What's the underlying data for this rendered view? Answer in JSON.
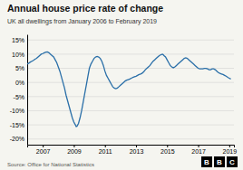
{
  "chart_data": {
    "type": "line",
    "title": "Annual house price rate of change",
    "subtitle": "UK all dwellings from January 2006 to February 2019",
    "source": "Source: Office for National Statistics",
    "logo": [
      "B",
      "B",
      "C"
    ],
    "x": [
      2006.0,
      2006.1,
      2006.2,
      2006.3,
      2006.4,
      2006.5,
      2006.6,
      2006.7,
      2006.8,
      2006.9,
      2007.0,
      2007.1,
      2007.2,
      2007.3,
      2007.4,
      2007.5,
      2007.6,
      2007.7,
      2007.8,
      2007.9,
      2008.0,
      2008.1,
      2008.2,
      2008.3,
      2008.4,
      2008.5,
      2008.6,
      2008.7,
      2008.8,
      2008.9,
      2009.0,
      2009.1,
      2009.15,
      2009.2,
      2009.3,
      2009.4,
      2009.5,
      2009.6,
      2009.7,
      2009.8,
      2009.9,
      2010.0,
      2010.1,
      2010.2,
      2010.3,
      2010.4,
      2010.5,
      2010.6,
      2010.7,
      2010.8,
      2010.9,
      2011.0,
      2011.1,
      2011.2,
      2011.3,
      2011.4,
      2011.5,
      2011.6,
      2011.7,
      2011.8,
      2011.9,
      2012.0,
      2012.1,
      2012.2,
      2012.3,
      2012.4,
      2012.5,
      2012.6,
      2012.7,
      2012.8,
      2012.9,
      2013.0,
      2013.1,
      2013.2,
      2013.3,
      2013.4,
      2013.5,
      2013.6,
      2013.7,
      2013.8,
      2013.9,
      2014.0,
      2014.1,
      2014.2,
      2014.3,
      2014.4,
      2014.5,
      2014.6,
      2014.7,
      2014.75,
      2014.8,
      2014.9,
      2015.0,
      2015.1,
      2015.2,
      2015.3,
      2015.4,
      2015.5,
      2015.6,
      2015.7,
      2015.8,
      2015.9,
      2016.0,
      2016.1,
      2016.2,
      2016.3,
      2016.4,
      2016.5,
      2016.6,
      2016.7,
      2016.8,
      2016.9,
      2017.0,
      2017.1,
      2017.2,
      2017.3,
      2017.4,
      2017.5,
      2017.6,
      2017.7,
      2017.8,
      2017.9,
      2018.0,
      2018.1,
      2018.2,
      2018.3,
      2018.4,
      2018.5,
      2018.6,
      2018.7,
      2018.8,
      2018.9,
      2019.0,
      2019.1
    ],
    "series": [
      {
        "color": "#2a6fa8",
        "values": [
          6.5,
          6.8,
          7.2,
          7.5,
          7.8,
          8.2,
          8.5,
          9.0,
          9.5,
          10.0,
          10.2,
          10.5,
          10.7,
          10.8,
          10.5,
          10.0,
          9.5,
          9.0,
          8.0,
          7.0,
          5.5,
          4.0,
          2.0,
          0.0,
          -2.0,
          -4.5,
          -6.5,
          -8.5,
          -10.5,
          -12.5,
          -14.0,
          -15.0,
          -15.6,
          -15.5,
          -14.5,
          -12.5,
          -10.0,
          -7.0,
          -4.0,
          -1.0,
          2.0,
          5.0,
          6.5,
          7.5,
          8.5,
          9.0,
          9.2,
          9.0,
          8.5,
          7.5,
          6.0,
          4.0,
          2.5,
          1.5,
          0.5,
          -0.5,
          -1.5,
          -2.0,
          -2.2,
          -2.0,
          -1.5,
          -1.0,
          -0.5,
          0.0,
          0.5,
          0.8,
          1.0,
          1.2,
          1.5,
          1.8,
          2.0,
          2.2,
          2.5,
          2.8,
          3.0,
          3.3,
          3.8,
          4.5,
          5.0,
          5.5,
          6.0,
          6.8,
          7.5,
          8.0,
          8.5,
          9.0,
          9.5,
          9.8,
          10.0,
          9.8,
          9.5,
          9.0,
          8.0,
          7.0,
          6.0,
          5.5,
          5.2,
          5.5,
          6.0,
          6.5,
          7.0,
          7.5,
          8.0,
          8.5,
          8.7,
          8.5,
          8.0,
          7.5,
          7.0,
          6.5,
          6.0,
          5.5,
          5.0,
          4.8,
          4.8,
          4.8,
          5.0,
          5.0,
          4.8,
          4.5,
          4.5,
          4.8,
          4.8,
          4.5,
          4.0,
          3.5,
          3.2,
          3.0,
          2.8,
          2.5,
          2.2,
          1.8,
          1.5,
          1.2
        ]
      }
    ],
    "xlim": [
      2006.0,
      2019.3
    ],
    "xticks": [
      2007,
      2009,
      2011,
      2013,
      2015,
      2017,
      2019
    ],
    "ylim": [
      -22,
      17
    ],
    "yticks": [
      {
        "value": -20,
        "label": "-20%"
      },
      {
        "value": -15,
        "label": "-15%"
      },
      {
        "value": -10,
        "label": "-10%"
      },
      {
        "value": -5,
        "label": "-5%"
      },
      {
        "value": 0,
        "label": "0%"
      },
      {
        "value": 5,
        "label": "5%"
      },
      {
        "value": 10,
        "label": "10%"
      },
      {
        "value": 15,
        "label": "15%"
      }
    ],
    "grid": true
  }
}
